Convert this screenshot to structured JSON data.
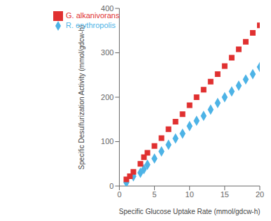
{
  "chart_data": {
    "type": "scatter",
    "xlabel": "Specific Glucose Uptake Rate (mmol/gdcw-h)",
    "ylabel": "Specific Desulfurization Activity (mmol/gdcw-h)",
    "xlim": [
      0,
      20
    ],
    "ylim": [
      0,
      400
    ],
    "xticks": [
      0,
      5,
      10,
      15,
      20
    ],
    "yticks": [
      0,
      100,
      200,
      300,
      400
    ],
    "grid": false,
    "legend": "upper left",
    "series": [
      {
        "name": "R. erythropolis",
        "color": "#4db3e6",
        "marker": "diamond",
        "x": [
          1,
          2,
          3,
          3.5,
          4,
          5,
          6,
          7,
          8,
          9,
          10,
          11,
          12,
          13,
          14,
          15,
          16,
          17,
          18,
          19,
          20
        ],
        "values": [
          8,
          22,
          30,
          38,
          48,
          62,
          78,
          93,
          107,
          118,
          135,
          147,
          158,
          172,
          187,
          200,
          213,
          226,
          240,
          252,
          268
        ]
      },
      {
        "name": "G. alkanivorans",
        "color": "#e03030",
        "marker": "square",
        "x": [
          1,
          1.5,
          2,
          3,
          3.5,
          4,
          5,
          6,
          7,
          8,
          9,
          10,
          11,
          12,
          13,
          14,
          15,
          16,
          17,
          18,
          19,
          20
        ],
        "values": [
          15,
          22,
          32,
          50,
          65,
          75,
          90,
          108,
          128,
          145,
          162,
          182,
          200,
          217,
          235,
          252,
          270,
          289,
          308,
          325,
          345,
          362
        ]
      }
    ]
  }
}
